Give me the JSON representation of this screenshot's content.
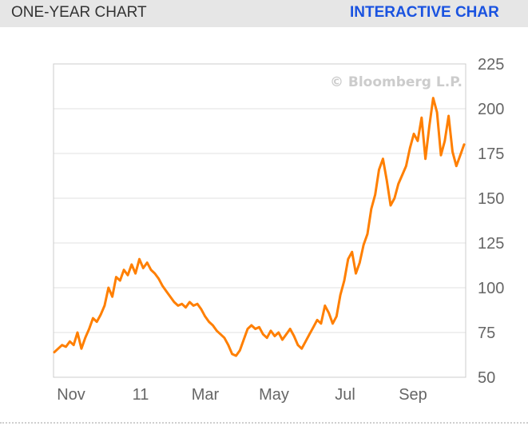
{
  "header": {
    "title": "ONE-YEAR CHART",
    "link_label": "INTERACTIVE CHAR"
  },
  "chart_data": {
    "type": "line",
    "title": "",
    "watermark": "© Bloomberg L.P.",
    "xlabel": "",
    "ylabel": "",
    "ylim": [
      50,
      225
    ],
    "y_ticks": [
      225,
      200,
      175,
      150,
      125,
      100,
      75,
      50
    ],
    "x_ticks": [
      "Nov",
      "11",
      "Mar",
      "May",
      "Jul",
      "Sep"
    ],
    "grid": true,
    "line_color": "#ff7f00",
    "series": [
      {
        "values": [
          64,
          66,
          68,
          67,
          70,
          68,
          75,
          66,
          72,
          77,
          83,
          81,
          85,
          90,
          100,
          95,
          106,
          104,
          110,
          107,
          113,
          108,
          116,
          111,
          114,
          110,
          108,
          105,
          101,
          98,
          95,
          92,
          90,
          91,
          89,
          92,
          90,
          91,
          88,
          84,
          81,
          79,
          76,
          74,
          72,
          68,
          63,
          62,
          65,
          71,
          77,
          79,
          77,
          78,
          74,
          72,
          76,
          73,
          75,
          71,
          74,
          77,
          73,
          68,
          66,
          70,
          74,
          78,
          82,
          80,
          90,
          86,
          80,
          84,
          96,
          104,
          116,
          120,
          108,
          114,
          124,
          130,
          144,
          152,
          166,
          172,
          160,
          146,
          150,
          158,
          163,
          168,
          178,
          186,
          182,
          195,
          172,
          190,
          206,
          198,
          174,
          182,
          196,
          176,
          168,
          174,
          180
        ]
      }
    ]
  }
}
